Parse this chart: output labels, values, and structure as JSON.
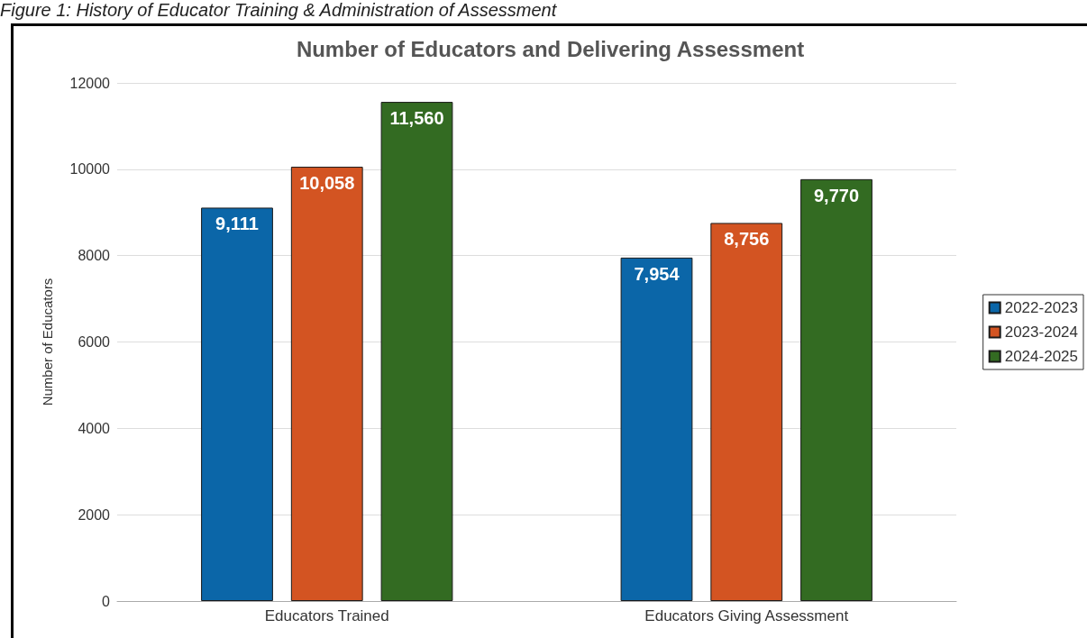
{
  "chart_data": {
    "type": "bar",
    "title": "Number of Educators and Delivering Assessment",
    "ylabel": "Number of Educators",
    "annotations": [
      "Figure 1: History of Educator Training & Administration of Assessment"
    ],
    "categories": [
      "Educators Trained",
      "Educators Giving Assessment"
    ],
    "series": [
      {
        "name": "2022-2023",
        "color": "#0b66a8",
        "values": [
          9111,
          7954
        ],
        "value_labels": [
          "9,111",
          "7,954"
        ]
      },
      {
        "name": "2023-2024",
        "color": "#d35422",
        "values": [
          10058,
          8756
        ],
        "value_labels": [
          "10,058",
          "8,756"
        ]
      },
      {
        "name": "2024-2025",
        "color": "#336b22",
        "values": [
          11560,
          9770
        ],
        "value_labels": [
          "11,560",
          "9,770"
        ]
      }
    ],
    "ylim": [
      0,
      12000
    ],
    "yticks": [
      0,
      2000,
      4000,
      6000,
      8000,
      10000,
      12000
    ],
    "grid": "y",
    "legend": "right"
  }
}
